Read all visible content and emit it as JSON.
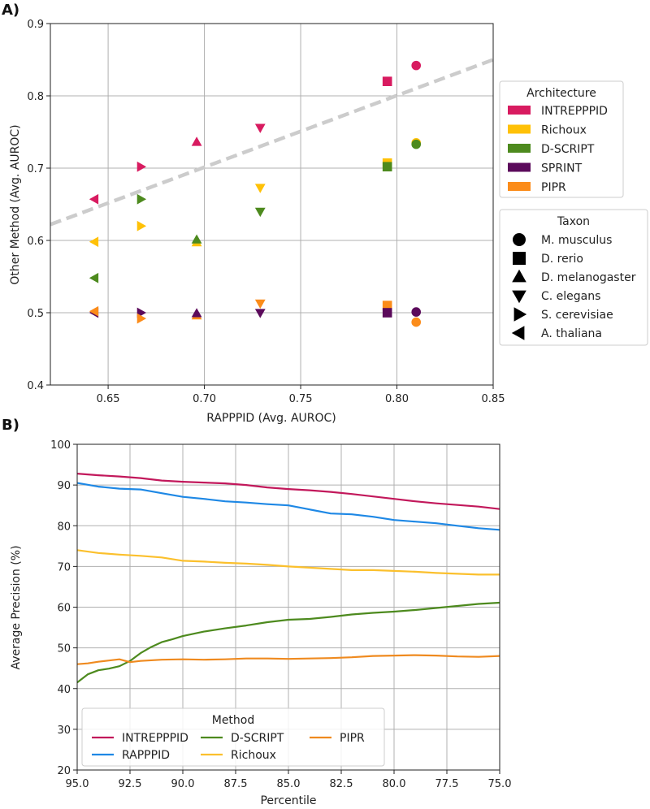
{
  "chart_data": [
    {
      "panel": "A)",
      "type": "scatter",
      "xlabel": "RAPPPID (Avg. AUROC)",
      "ylabel": "Other Method (Avg. AUROC)",
      "xlim": [
        0.62,
        0.85
      ],
      "ylim": [
        0.4,
        0.9
      ],
      "xticks": [
        0.65,
        0.7,
        0.75,
        0.8,
        0.85
      ],
      "xtick_labels": [
        "0.65",
        "0.70",
        "0.75",
        "0.80",
        "0.85"
      ],
      "yticks": [
        0.4,
        0.5,
        0.6,
        0.7,
        0.8,
        0.9
      ],
      "ytick_labels": [
        "0.4",
        "0.5",
        "0.6",
        "0.7",
        "0.8",
        "0.9"
      ],
      "grid": true,
      "reference_line": {
        "style": "dashed",
        "color": "#cccccc",
        "points": [
          [
            0.62,
            0.622
          ],
          [
            0.85,
            0.85
          ]
        ]
      },
      "legend_architecture": {
        "title": "Architecture",
        "entries": [
          {
            "name": "INTREPPPID",
            "color": "#d81b60"
          },
          {
            "name": "Richoux",
            "color": "#ffc107"
          },
          {
            "name": "D-SCRIPT",
            "color": "#4d8a1e"
          },
          {
            "name": "SPRINT",
            "color": "#5b0a5b"
          },
          {
            "name": "PIPR",
            "color": "#fb8c1a"
          }
        ]
      },
      "legend_taxon": {
        "title": "Taxon",
        "entries": [
          {
            "name": "M. musculus",
            "marker": "circle"
          },
          {
            "name": "D. rerio",
            "marker": "square"
          },
          {
            "name": "D. melanogaster",
            "marker": "triangle-up"
          },
          {
            "name": "C. elegans",
            "marker": "triangle-down"
          },
          {
            "name": "S. cerevisiae",
            "marker": "triangle-right"
          },
          {
            "name": "A. thaliana",
            "marker": "triangle-left"
          }
        ]
      },
      "points": [
        {
          "arch": "INTREPPPID",
          "taxon": "A. thaliana",
          "x": 0.643,
          "y": 0.657
        },
        {
          "arch": "Richoux",
          "taxon": "A. thaliana",
          "x": 0.643,
          "y": 0.598
        },
        {
          "arch": "D-SCRIPT",
          "taxon": "A. thaliana",
          "x": 0.643,
          "y": 0.548
        },
        {
          "arch": "SPRINT",
          "taxon": "A. thaliana",
          "x": 0.643,
          "y": 0.5
        },
        {
          "arch": "PIPR",
          "taxon": "A. thaliana",
          "x": 0.643,
          "y": 0.502
        },
        {
          "arch": "INTREPPPID",
          "taxon": "S. cerevisiae",
          "x": 0.667,
          "y": 0.702
        },
        {
          "arch": "D-SCRIPT",
          "taxon": "S. cerevisiae",
          "x": 0.667,
          "y": 0.657
        },
        {
          "arch": "Richoux",
          "taxon": "S. cerevisiae",
          "x": 0.667,
          "y": 0.62
        },
        {
          "arch": "SPRINT",
          "taxon": "S. cerevisiae",
          "x": 0.667,
          "y": 0.5
        },
        {
          "arch": "PIPR",
          "taxon": "S. cerevisiae",
          "x": 0.667,
          "y": 0.492
        },
        {
          "arch": "INTREPPPID",
          "taxon": "D. melanogaster",
          "x": 0.696,
          "y": 0.736
        },
        {
          "arch": "Richoux",
          "taxon": "D. melanogaster",
          "x": 0.696,
          "y": 0.597
        },
        {
          "arch": "D-SCRIPT",
          "taxon": "D. melanogaster",
          "x": 0.696,
          "y": 0.601
        },
        {
          "arch": "PIPR",
          "taxon": "D. melanogaster",
          "x": 0.696,
          "y": 0.496
        },
        {
          "arch": "SPRINT",
          "taxon": "D. melanogaster",
          "x": 0.696,
          "y": 0.499
        },
        {
          "arch": "INTREPPPID",
          "taxon": "C. elegans",
          "x": 0.729,
          "y": 0.756
        },
        {
          "arch": "Richoux",
          "taxon": "C. elegans",
          "x": 0.729,
          "y": 0.673
        },
        {
          "arch": "D-SCRIPT",
          "taxon": "C. elegans",
          "x": 0.729,
          "y": 0.64
        },
        {
          "arch": "PIPR",
          "taxon": "C. elegans",
          "x": 0.729,
          "y": 0.513
        },
        {
          "arch": "SPRINT",
          "taxon": "C. elegans",
          "x": 0.729,
          "y": 0.5
        },
        {
          "arch": "INTREPPPID",
          "taxon": "D. rerio",
          "x": 0.795,
          "y": 0.82
        },
        {
          "arch": "Richoux",
          "taxon": "D. rerio",
          "x": 0.795,
          "y": 0.707
        },
        {
          "arch": "D-SCRIPT",
          "taxon": "D. rerio",
          "x": 0.795,
          "y": 0.702
        },
        {
          "arch": "PIPR",
          "taxon": "D. rerio",
          "x": 0.795,
          "y": 0.51
        },
        {
          "arch": "SPRINT",
          "taxon": "D. rerio",
          "x": 0.795,
          "y": 0.5
        },
        {
          "arch": "INTREPPPID",
          "taxon": "M. musculus",
          "x": 0.81,
          "y": 0.842
        },
        {
          "arch": "Richoux",
          "taxon": "M. musculus",
          "x": 0.81,
          "y": 0.735
        },
        {
          "arch": "D-SCRIPT",
          "taxon": "M. musculus",
          "x": 0.81,
          "y": 0.733
        },
        {
          "arch": "SPRINT",
          "taxon": "M. musculus",
          "x": 0.81,
          "y": 0.501
        },
        {
          "arch": "PIPR",
          "taxon": "M. musculus",
          "x": 0.81,
          "y": 0.487
        }
      ]
    },
    {
      "panel": "B)",
      "type": "line",
      "xlabel": "Percentile",
      "ylabel": "Average Precision (%)",
      "xlim": [
        95.0,
        75.0
      ],
      "ylim": [
        20,
        100
      ],
      "xticks": [
        95.0,
        92.5,
        90.0,
        87.5,
        85.0,
        82.5,
        80.0,
        77.5,
        75.0
      ],
      "xtick_labels": [
        "95.0",
        "92.5",
        "90.0",
        "87.5",
        "85.0",
        "82.5",
        "80.0",
        "77.5",
        "75.0"
      ],
      "yticks": [
        20,
        30,
        40,
        50,
        60,
        70,
        80,
        90,
        100
      ],
      "ytick_labels": [
        "20",
        "30",
        "40",
        "50",
        "60",
        "70",
        "80",
        "90",
        "100"
      ],
      "grid": true,
      "legend": {
        "title": "Method",
        "placement": "lower-left"
      },
      "series": [
        {
          "name": "INTREPPPID",
          "color": "#c2185b",
          "x": [
            95,
            94,
            93,
            92,
            91,
            90,
            89,
            88,
            87,
            86,
            85,
            84,
            83,
            82,
            81,
            80,
            79,
            78,
            77,
            76,
            75
          ],
          "y": [
            92.8,
            92.4,
            92.1,
            91.7,
            91.1,
            90.8,
            90.6,
            90.4,
            90.0,
            89.4,
            89.0,
            88.7,
            88.3,
            87.8,
            87.2,
            86.6,
            86.0,
            85.5,
            85.1,
            84.7,
            84.1
          ]
        },
        {
          "name": "RAPPPID",
          "color": "#1e88e5",
          "x": [
            95,
            94,
            93,
            92,
            91,
            90,
            89,
            88,
            87,
            86,
            85,
            84,
            83,
            82,
            81,
            80,
            79,
            78,
            77,
            76,
            75
          ],
          "y": [
            90.5,
            89.6,
            89.1,
            88.9,
            88.0,
            87.1,
            86.6,
            86.0,
            85.7,
            85.3,
            85.0,
            84.0,
            83.0,
            82.8,
            82.2,
            81.4,
            81.0,
            80.6,
            80.0,
            79.4,
            79.0
          ]
        },
        {
          "name": "D-SCRIPT",
          "color": "#4d8a1e",
          "x": [
            95,
            94.5,
            94,
            93.5,
            93,
            92.5,
            92,
            91.5,
            91,
            90.5,
            90,
            89,
            88,
            87,
            86,
            85,
            84,
            83,
            82,
            81,
            80,
            79,
            78,
            77,
            76,
            75
          ],
          "y": [
            41.5,
            43.5,
            44.5,
            44.9,
            45.5,
            46.8,
            48.7,
            50.2,
            51.4,
            52.1,
            52.9,
            54.0,
            54.8,
            55.5,
            56.3,
            56.9,
            57.1,
            57.6,
            58.2,
            58.6,
            58.9,
            59.3,
            59.8,
            60.3,
            60.8,
            61.1
          ]
        },
        {
          "name": "Richoux",
          "color": "#fbc02d",
          "x": [
            95,
            94,
            93,
            92,
            91,
            90,
            89,
            88,
            87,
            86,
            85,
            84,
            83,
            82,
            81,
            80,
            79,
            78,
            77,
            76,
            75
          ],
          "y": [
            74.0,
            73.3,
            72.9,
            72.6,
            72.2,
            71.4,
            71.2,
            70.9,
            70.7,
            70.4,
            70.0,
            69.7,
            69.4,
            69.1,
            69.1,
            68.9,
            68.7,
            68.4,
            68.2,
            68.0,
            68.0
          ]
        },
        {
          "name": "PIPR",
          "color": "#ef8a1f",
          "x": [
            95,
            94.5,
            94,
            93.5,
            93,
            92.5,
            92,
            91,
            90,
            89,
            88,
            87,
            86,
            85,
            84,
            83,
            82,
            81,
            80,
            79,
            78,
            77,
            76,
            75
          ],
          "y": [
            46.0,
            46.2,
            46.6,
            46.9,
            47.2,
            46.5,
            46.8,
            47.1,
            47.2,
            47.1,
            47.2,
            47.4,
            47.4,
            47.3,
            47.4,
            47.5,
            47.7,
            48.0,
            48.1,
            48.2,
            48.1,
            47.9,
            47.8,
            48.0
          ]
        }
      ]
    }
  ]
}
